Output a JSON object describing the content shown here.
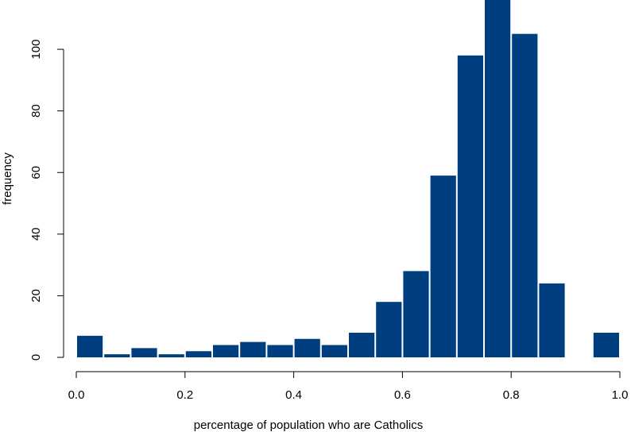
{
  "chart_data": {
    "type": "bar",
    "subtype": "histogram",
    "title": "",
    "xlabel": "percentage of population who are Catholics",
    "ylabel": "frequency",
    "bin_width": 0.05,
    "bin_starts": [
      0.0,
      0.05,
      0.1,
      0.15,
      0.2,
      0.25,
      0.3,
      0.35,
      0.4,
      0.45,
      0.5,
      0.55,
      0.6,
      0.65,
      0.7,
      0.75,
      0.8,
      0.85,
      0.9,
      0.95
    ],
    "values": [
      7,
      1,
      3,
      1,
      2,
      4,
      5,
      4,
      6,
      4,
      8,
      18,
      28,
      59,
      98,
      116,
      105,
      24,
      0,
      8
    ],
    "xlim": [
      0,
      1
    ],
    "ylim": [
      0,
      116
    ],
    "x_ticks": [
      0,
      0.2,
      0.4,
      0.6,
      0.8,
      1.0
    ],
    "x_tick_labels": [
      "0.0",
      "0.2",
      "0.4",
      "0.6",
      "0.8",
      "1.0"
    ],
    "y_ticks": [
      0,
      20,
      40,
      60,
      80,
      100
    ],
    "y_tick_labels": [
      "0",
      "20",
      "40",
      "60",
      "80",
      "100"
    ],
    "bar_color": "#003f7f",
    "grid": false,
    "legend": "none"
  }
}
